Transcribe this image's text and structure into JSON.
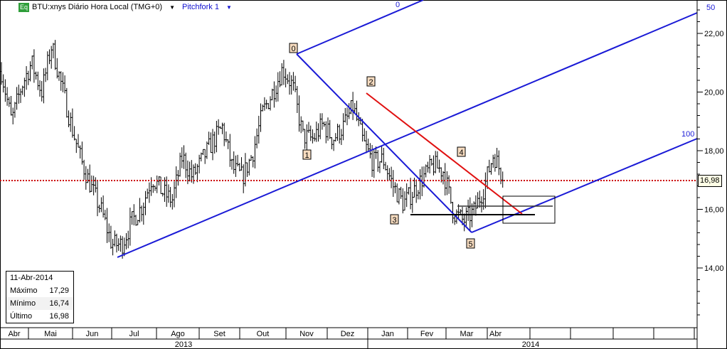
{
  "header": {
    "badge": "Eq",
    "instrument": "BTU:xnys Diário Hora Local (TMG+0)",
    "drawing_tool": "Pitchfork 1"
  },
  "info_box": {
    "date": "11-Abr-2014",
    "rows": [
      {
        "label": "Máximo",
        "value": "17,29"
      },
      {
        "label": "Mínimo",
        "value": "16,74"
      },
      {
        "label": "Último",
        "value": "16,98"
      }
    ]
  },
  "last_price_tag": "16,98",
  "pitchfork": {
    "level_labels": [
      "0",
      "50",
      "100"
    ],
    "point_labels": [
      "0",
      "1",
      "2",
      "3",
      "4",
      "5"
    ],
    "line_color": "#1a1ad6",
    "trend_color": "#e01010"
  },
  "colors": {
    "bars": "#000000",
    "last_price_line": "#cc0000",
    "label_bg": "#f7dcc0"
  },
  "chart_data": {
    "type": "ohlc",
    "ylim": [
      12.3,
      22.9
    ],
    "y_ticks": [
      "22,00",
      "20,00",
      "18,00",
      "16,00",
      "14,00"
    ],
    "y_tick_values": [
      22,
      20,
      18,
      16,
      14
    ],
    "x_months": [
      "Abr",
      "Mai",
      "Jun",
      "Jul",
      "Ago",
      "Set",
      "Out",
      "Nov",
      "Dez",
      "Jan",
      "Fev",
      "Mar",
      "Abr",
      "",
      "",
      "",
      ""
    ],
    "x_years": [
      "2013",
      "2014"
    ],
    "last_price": 16.98,
    "close_approx": [
      20.7,
      19.0,
      20.2,
      21.0,
      20.0,
      21.6,
      20.2,
      18.8,
      17.6,
      16.7,
      15.9,
      14.8,
      14.8,
      15.6,
      16.1,
      17.1,
      16.6,
      16.3,
      17.8,
      17.1,
      17.7,
      18.3,
      18.8,
      17.4,
      17.1,
      17.9,
      19.3,
      20.0,
      20.8,
      20.2,
      18.5,
      18.4,
      18.9,
      18.4,
      18.8,
      19.5,
      18.3,
      17.6,
      17.7,
      16.8,
      16.2,
      16.6,
      17.1,
      17.5,
      17.3,
      15.9,
      15.6,
      15.9,
      16.7,
      17.9,
      17.0
    ],
    "last_bar": {
      "date": "11-Abr-2014",
      "high": 17.29,
      "low": 16.74,
      "close": 16.98
    }
  }
}
